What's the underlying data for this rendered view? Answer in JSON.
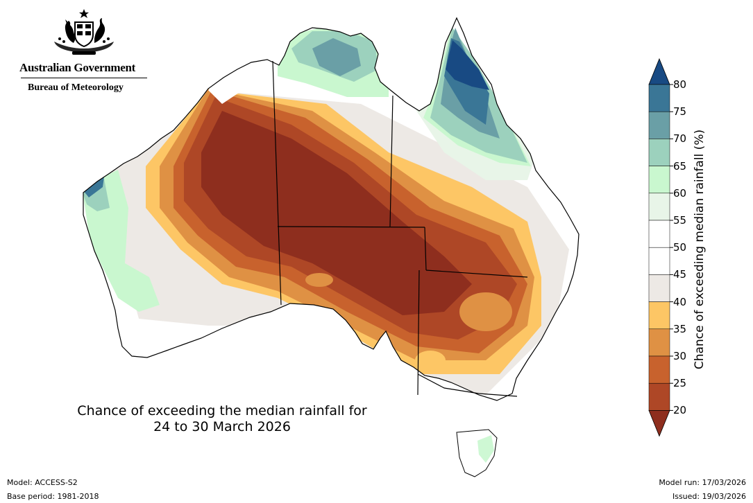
{
  "header": {
    "government": "Australian Government",
    "agency": "Bureau of Meteorology"
  },
  "map": {
    "region": "Australia",
    "title_line1": "Chance of exceeding the median rainfall for",
    "title_line2": "24 to 30 March 2026"
  },
  "legend": {
    "label": "Chance of exceeding median rainfall (%)",
    "ticks": [
      "80",
      "75",
      "70",
      "65",
      "60",
      "55",
      "50",
      "45",
      "40",
      "35",
      "30",
      "25",
      "20"
    ],
    "bands": [
      {
        "range": "80+",
        "color": "#184a83"
      },
      {
        "range": "75-80",
        "color": "#3a7696"
      },
      {
        "range": "70-75",
        "color": "#6a9fa6"
      },
      {
        "range": "65-70",
        "color": "#9cd1bd"
      },
      {
        "range": "60-65",
        "color": "#c9f7cf"
      },
      {
        "range": "55-60",
        "color": "#e8f5e8"
      },
      {
        "range": "50-55",
        "color": "#ffffff"
      },
      {
        "range": "45-50",
        "color": "#ffffff"
      },
      {
        "range": "40-45",
        "color": "#ede9e5"
      },
      {
        "range": "35-40",
        "color": "#fdc665"
      },
      {
        "range": "30-35",
        "color": "#df9144"
      },
      {
        "range": "25-30",
        "color": "#c8622d"
      },
      {
        "range": "20-25",
        "color": "#ae4726"
      },
      {
        "range": "<20",
        "color": "#8e2e1e"
      }
    ]
  },
  "footer": {
    "model": "Model: ACCESS-S2",
    "base_period": "Base period: 1981-2018",
    "model_run": "Model run: 17/03/2026",
    "issued": "Issued: 19/03/2026"
  }
}
